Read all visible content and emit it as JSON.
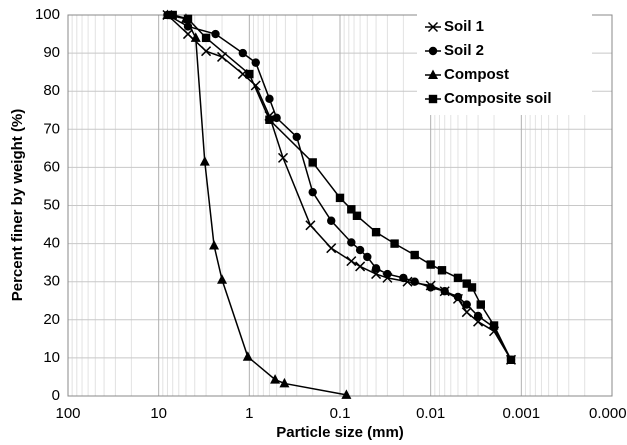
{
  "chart_data": {
    "type": "line",
    "x_label": "Particle size (mm)",
    "y_label": "Percent finer by weight (%)",
    "xscale": "log",
    "xlim": [
      100,
      0.0001
    ],
    "xticks": [
      100,
      10,
      1,
      0.1,
      0.01,
      0.001,
      0.0001
    ],
    "ylim": [
      0,
      100
    ],
    "yticks": [
      0,
      10,
      20,
      30,
      40,
      50,
      60,
      70,
      80,
      90,
      100
    ],
    "grid": true,
    "minor_grid": true,
    "legend": "top-right",
    "series": [
      {
        "name": "Soil 1",
        "color": "#000000",
        "marker": "x",
        "x": [
          8,
          4.75,
          3,
          2,
          1.18,
          0.85,
          0.6,
          0.425,
          0.212,
          0.125,
          0.075,
          0.06,
          0.04,
          0.03,
          0.018,
          0.01,
          0.007,
          0.005,
          0.004,
          0.003,
          0.002,
          0.0013
        ],
        "values": [
          100,
          95,
          90.5,
          89,
          84.5,
          81.5,
          73.5,
          62.5,
          44.8,
          38.8,
          35.4,
          34,
          32,
          31,
          30,
          29,
          27.5,
          25.5,
          22,
          19.5,
          17,
          9.5
        ]
      },
      {
        "name": "Soil 2",
        "color": "#000000",
        "marker": "circle",
        "x": [
          8,
          4.75,
          2.36,
          1.18,
          0.85,
          0.6,
          0.5,
          0.3,
          0.2,
          0.125,
          0.075,
          0.06,
          0.05,
          0.04,
          0.03,
          0.02,
          0.015,
          0.01,
          0.007,
          0.005,
          0.004,
          0.003,
          0.002,
          0.0013
        ],
        "values": [
          100,
          97,
          95,
          90,
          87.5,
          78,
          73,
          68,
          53.5,
          46,
          40.3,
          38.3,
          36.5,
          33.5,
          32,
          31,
          30,
          28.5,
          27.5,
          26,
          24,
          21,
          18,
          9.5
        ]
      },
      {
        "name": "Compost",
        "color": "#000000",
        "marker": "triangle",
        "x": [
          8,
          5,
          3.9,
          3.1,
          2.45,
          2,
          1.04,
          0.52,
          0.41,
          0.085
        ],
        "values": [
          100,
          99,
          94,
          61.5,
          39.5,
          30.5,
          10.3,
          4.3,
          3.3,
          0.3
        ]
      },
      {
        "name": "Composite soil",
        "color": "#000000",
        "marker": "square",
        "x": [
          7,
          4.75,
          3,
          1,
          0.6,
          0.2,
          0.1,
          0.075,
          0.065,
          0.04,
          0.025,
          0.015,
          0.01,
          0.0075,
          0.005,
          0.004,
          0.0035,
          0.0028,
          0.002,
          0.0013
        ],
        "values": [
          100,
          99,
          94,
          84.5,
          72.5,
          61.3,
          52,
          49,
          47.3,
          43,
          40,
          37,
          34.5,
          33,
          31,
          29.5,
          28.5,
          24,
          18.5,
          9.5
        ]
      }
    ]
  }
}
